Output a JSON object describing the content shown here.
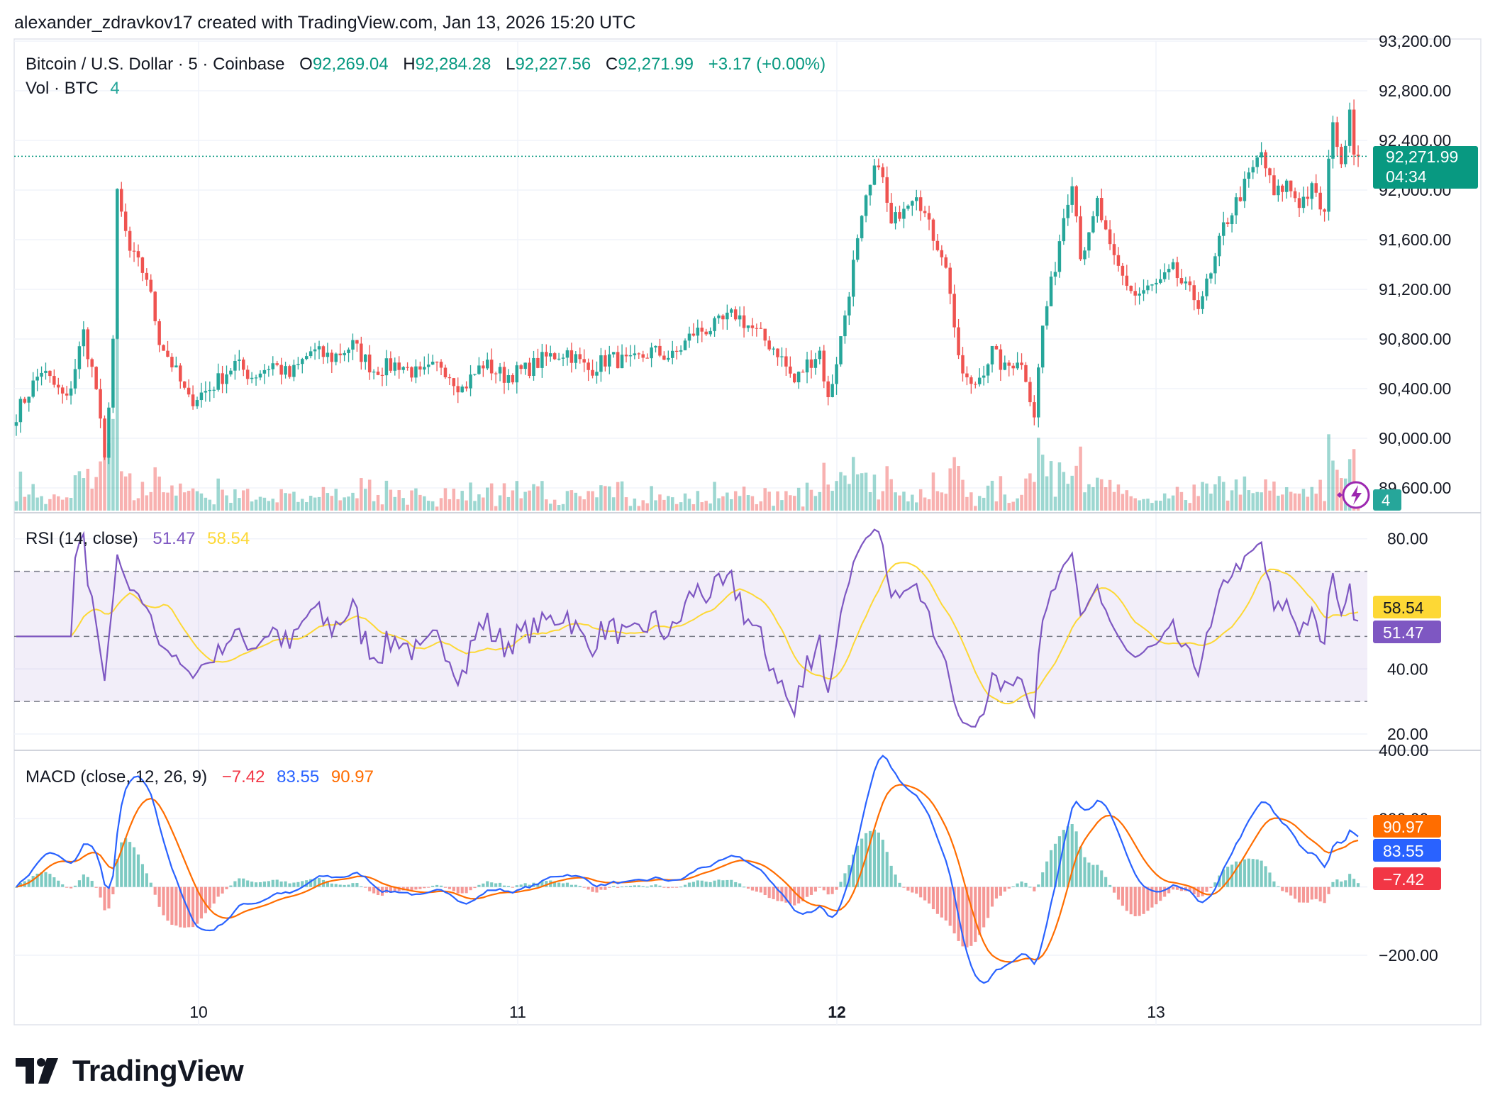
{
  "header": {
    "attribution": "alexander_zdravkov17 created with TradingView.com, Jan 13, 2026 15:20 UTC"
  },
  "legend": {
    "symbol": "Bitcoin / U.S. Dollar · 5 · Coinbase",
    "o_label": "O",
    "o_value": "92,269.04",
    "h_label": "H",
    "h_value": "92,284.28",
    "l_label": "L",
    "l_value": "92,227.56",
    "c_label": "C",
    "c_value": "92,271.99",
    "change": "+3.17 (+0.00%)",
    "vol_label": "Vol · BTC",
    "vol_value": "4"
  },
  "price_badge": {
    "price": "92,271.99",
    "countdown": "04:34"
  },
  "volume_badge": "4",
  "rsi_legend": {
    "label": "RSI (14, close)",
    "rsi": "51.47",
    "ma": "58.54"
  },
  "macd_legend": {
    "label": "MACD (close, 12, 26, 9)",
    "hist": "−7.42",
    "macd": "83.55",
    "signal": "90.97"
  },
  "rsi_badges": {
    "ma": "58.54",
    "rsi": "51.47"
  },
  "macd_badges": {
    "signal": "90.97",
    "macd": "83.55",
    "hist": "−7.42"
  },
  "brand": {
    "name": "TradingView"
  },
  "colors": {
    "up": "#26a69a",
    "down": "#ef5350",
    "rsi": "#7e57c2",
    "rsi_ma": "#fdd835",
    "macd": "#2962ff",
    "signal": "#ff6d00",
    "badge_green": "#089981",
    "badge_red": "#f23645"
  },
  "chart_data": [
    {
      "type": "candlestick",
      "title": "Bitcoin / U.S. Dollar · 5 · Coinbase",
      "xlabel": "",
      "ylabel": "",
      "x_ticks": [
        "10",
        "11",
        "12",
        "13"
      ],
      "y_ticks": [
        "89,600.00",
        "90,000.00",
        "90,400.00",
        "90,800.00",
        "91,200.00",
        "91,600.00",
        "92,000.00",
        "92,400.00",
        "92,800.00",
        "93,200.00"
      ],
      "ylim": [
        89400,
        93200
      ],
      "last_price": 92271.99,
      "anchors": [
        [
          0,
          90200
        ],
        [
          6,
          90550
        ],
        [
          12,
          90300
        ],
        [
          16,
          90850
        ],
        [
          19,
          90400
        ],
        [
          21,
          89800
        ],
        [
          23,
          90800
        ],
        [
          24,
          91950
        ],
        [
          27,
          91500
        ],
        [
          31,
          91300
        ],
        [
          34,
          90800
        ],
        [
          37,
          90600
        ],
        [
          41,
          90300
        ],
        [
          46,
          90400
        ],
        [
          52,
          90600
        ],
        [
          56,
          90500
        ],
        [
          61,
          90600
        ],
        [
          65,
          90500
        ],
        [
          70,
          90700
        ],
        [
          75,
          90650
        ],
        [
          80,
          90750
        ],
        [
          85,
          90550
        ],
        [
          91,
          90600
        ],
        [
          96,
          90500
        ],
        [
          101,
          90600
        ],
        [
          106,
          90400
        ],
        [
          111,
          90600
        ],
        [
          116,
          90500
        ],
        [
          121,
          90550
        ],
        [
          126,
          90650
        ],
        [
          131,
          90700
        ],
        [
          136,
          90550
        ],
        [
          141,
          90650
        ],
        [
          146,
          90600
        ],
        [
          151,
          90700
        ],
        [
          156,
          90650
        ],
        [
          161,
          90850
        ],
        [
          166,
          90900
        ],
        [
          171,
          91000
        ],
        [
          176,
          90850
        ],
        [
          181,
          90700
        ],
        [
          185,
          90450
        ],
        [
          188,
          90600
        ],
        [
          191,
          90700
        ],
        [
          193,
          90300
        ],
        [
          196,
          90800
        ],
        [
          199,
          91400
        ],
        [
          202,
          91900
        ],
        [
          205,
          92250
        ],
        [
          208,
          91700
        ],
        [
          211,
          91900
        ],
        [
          214,
          92000
        ],
        [
          217,
          91700
        ],
        [
          220,
          91500
        ],
        [
          222,
          91200
        ],
        [
          224,
          90600
        ],
        [
          227,
          90400
        ],
        [
          229,
          90500
        ],
        [
          232,
          90700
        ],
        [
          235,
          90550
        ],
        [
          238,
          90650
        ],
        [
          240,
          90500
        ],
        [
          242,
          90200
        ],
        [
          244,
          90900
        ],
        [
          247,
          91400
        ],
        [
          249,
          91800
        ],
        [
          251,
          92100
        ],
        [
          253,
          91500
        ],
        [
          255,
          91600
        ],
        [
          257,
          91900
        ],
        [
          260,
          91500
        ],
        [
          263,
          91300
        ],
        [
          266,
          91150
        ],
        [
          269,
          91200
        ],
        [
          272,
          91250
        ],
        [
          275,
          91350
        ],
        [
          278,
          91200
        ],
        [
          281,
          91100
        ],
        [
          284,
          91300
        ],
        [
          287,
          91700
        ],
        [
          290,
          91900
        ],
        [
          293,
          92100
        ],
        [
          296,
          92300
        ],
        [
          299,
          91950
        ],
        [
          302,
          92050
        ],
        [
          305,
          91900
        ],
        [
          308,
          92000
        ],
        [
          311,
          91800
        ],
        [
          313,
          92600
        ],
        [
          315,
          92150
        ],
        [
          317,
          92700
        ],
        [
          318,
          92300
        ]
      ],
      "volume_note": "volume histogram bars (BTC), last value 4"
    },
    {
      "type": "line",
      "title": "RSI (14, close)",
      "series": [
        {
          "name": "RSI",
          "last": 51.47
        },
        {
          "name": "RSI-based MA",
          "last": 58.54
        }
      ],
      "y_ticks": [
        "20.00",
        "40.00",
        "80.00"
      ],
      "ylim": [
        15,
        88
      ],
      "bands": {
        "upper": 70,
        "middle": 50,
        "lower": 30
      }
    },
    {
      "type": "line",
      "title": "MACD (close, 12, 26, 9)",
      "series": [
        {
          "name": "MACD",
          "last": 83.55
        },
        {
          "name": "Signal",
          "last": 90.97
        },
        {
          "name": "Histogram",
          "last": -7.42
        }
      ],
      "y_ticks": [
        "−200.00",
        "200.00",
        "400.00"
      ],
      "ylim": [
        -310,
        400
      ]
    }
  ]
}
